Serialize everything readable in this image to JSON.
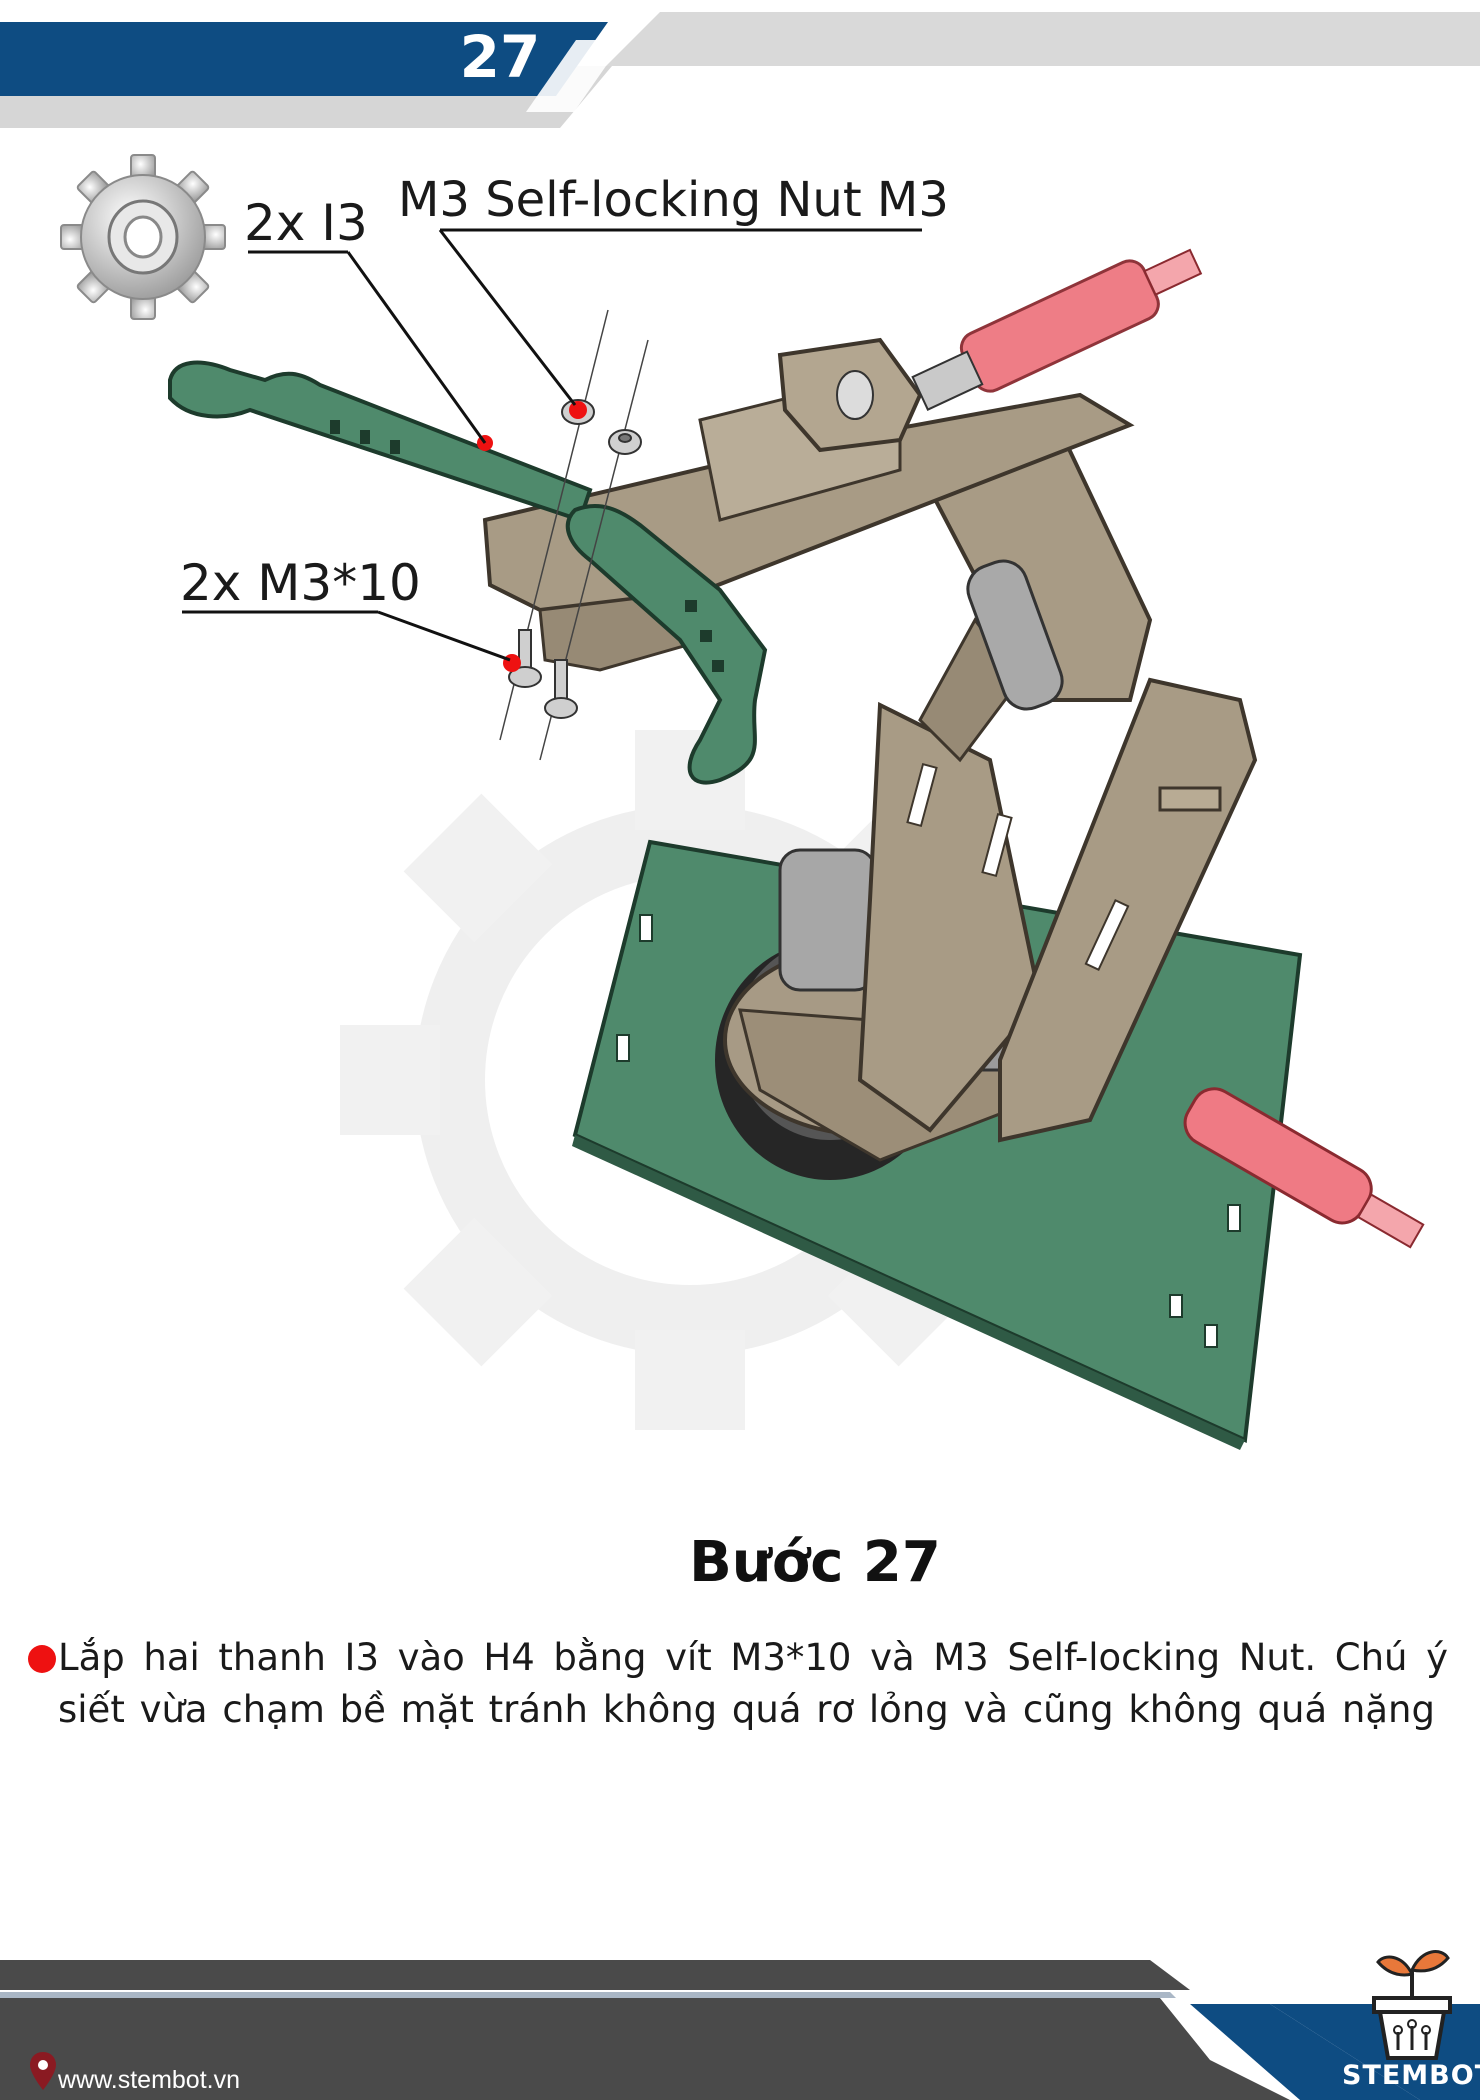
{
  "header": {
    "page_number": "27",
    "colors": {
      "band_blue": "#0e4c82",
      "band_gray": "#d9d9d9"
    }
  },
  "callouts": {
    "part_i3": "2x I3",
    "nut": "M3 Self-locking Nut M3",
    "screw": "2x M3*10"
  },
  "step": {
    "title": "Bước 27",
    "instruction": "Lắp hai thanh I3 vào H4 bằng vít M3*10 và M3 Self-locking Nut. Chú ý siết vừa chạm bề mặt tránh không quá rơ lỏng và cũng không quá nặng"
  },
  "footer": {
    "website": "www.stembot.vn",
    "brand": "STEMBOT",
    "colors": {
      "band_dark": "#4a4a4a",
      "band_blue": "#0e4c82"
    }
  },
  "icons": [
    "gear-icon",
    "location-pin-icon",
    "plant-pot-logo-icon"
  ]
}
